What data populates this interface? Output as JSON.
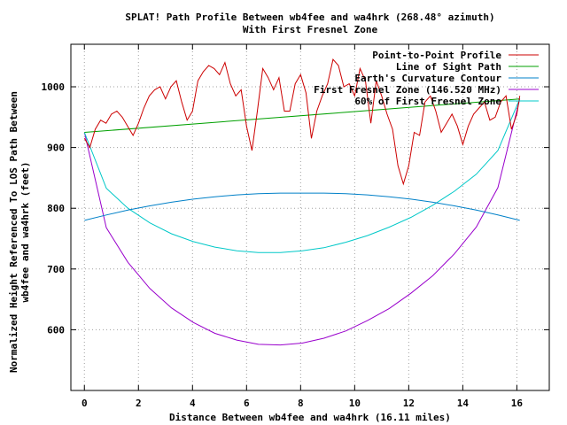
{
  "chart_data": {
    "type": "line",
    "title": "SPLAT! Path Profile Between wb4fee and wa4hrk (268.48° azimuth)",
    "subtitle": "With First Fresnel Zone",
    "xlabel": "Distance Between wb4fee and wa4hrk (16.11 miles)",
    "ylabel_lines": [
      "Normalized Height Referenced To LOS Path Between",
      "wb4fee and wa4hrk (feet)"
    ],
    "xlim": [
      -0.5,
      17.2
    ],
    "ylim": [
      500,
      1070
    ],
    "x_ticks": [
      0,
      2,
      4,
      6,
      8,
      10,
      12,
      14,
      16
    ],
    "x_tick_labels": [
      "0",
      "2",
      "4",
      "6",
      "8",
      "10",
      "12",
      "14",
      "16"
    ],
    "y_ticks": [
      600,
      700,
      800,
      900,
      1000
    ],
    "y_tick_labels": [
      "600",
      "700",
      "800",
      "900",
      "1000"
    ],
    "grid": true,
    "legend_position": "top-right",
    "series": [
      {
        "name": "Point-to-Point Profile",
        "color": "#cc0000",
        "x": [
          0,
          0.2,
          0.4,
          0.6,
          0.8,
          1.0,
          1.2,
          1.4,
          1.6,
          1.8,
          2.0,
          2.2,
          2.4,
          2.6,
          2.8,
          3.0,
          3.2,
          3.4,
          3.6,
          3.8,
          4.0,
          4.2,
          4.4,
          4.6,
          4.8,
          5.0,
          5.2,
          5.4,
          5.6,
          5.8,
          6.0,
          6.2,
          6.4,
          6.6,
          6.8,
          7.0,
          7.2,
          7.4,
          7.6,
          7.8,
          8.0,
          8.2,
          8.4,
          8.6,
          8.8,
          9.0,
          9.2,
          9.4,
          9.6,
          9.8,
          10.0,
          10.2,
          10.4,
          10.6,
          10.8,
          11.0,
          11.2,
          11.4,
          11.6,
          11.8,
          12.0,
          12.2,
          12.4,
          12.6,
          12.8,
          13.0,
          13.2,
          13.4,
          13.6,
          13.8,
          14.0,
          14.2,
          14.4,
          14.6,
          14.8,
          15.0,
          15.2,
          15.4,
          15.6,
          15.8,
          16.0,
          16.11
        ],
        "y": [
          915,
          900,
          930,
          945,
          940,
          955,
          960,
          950,
          935,
          920,
          940,
          965,
          985,
          995,
          1000,
          980,
          1000,
          1010,
          975,
          945,
          960,
          1010,
          1025,
          1035,
          1030,
          1020,
          1040,
          1005,
          985,
          995,
          935,
          895,
          960,
          1030,
          1015,
          995,
          1015,
          960,
          960,
          1005,
          1020,
          990,
          915,
          960,
          985,
          1005,
          1045,
          1035,
          1000,
          1005,
          985,
          1030,
          1010,
          940,
          1010,
          985,
          955,
          930,
          870,
          840,
          870,
          925,
          920,
          975,
          985,
          960,
          925,
          940,
          955,
          935,
          905,
          935,
          955,
          965,
          975,
          945,
          950,
          975,
          985,
          930,
          955,
          985
        ]
      },
      {
        "name": "Line of Sight Path",
        "color": "#00a000",
        "x": [
          0,
          16.11
        ],
        "y": [
          925,
          980
        ]
      },
      {
        "name": "Earth's Curvature Contour",
        "color": "#0080c8",
        "x": [
          0,
          0.81,
          1.61,
          2.42,
          3.22,
          4.03,
          4.83,
          5.64,
          6.44,
          7.25,
          8.06,
          8.86,
          9.67,
          10.47,
          11.28,
          12.08,
          12.89,
          13.69,
          14.5,
          15.3,
          16.11
        ],
        "y": [
          780,
          789,
          797,
          804,
          810,
          815,
          819,
          822,
          824,
          825,
          825,
          825,
          824,
          822,
          819,
          815,
          810,
          804,
          797,
          789,
          780
        ]
      },
      {
        "name": "First Fresnel Zone (146.520 MHz)",
        "color": "#9900cc",
        "x": [
          0,
          0.81,
          1.61,
          2.42,
          3.22,
          4.03,
          4.83,
          5.64,
          6.44,
          7.25,
          8.06,
          8.86,
          9.67,
          10.47,
          11.28,
          12.08,
          12.89,
          13.69,
          14.5,
          15.3,
          16.11
        ],
        "y": [
          925,
          768,
          711,
          668,
          636,
          612,
          594,
          583,
          576,
          575,
          578,
          586,
          598,
          615,
          635,
          660,
          689,
          725,
          769,
          834,
          980
        ]
      },
      {
        "name": "60% of First Fresnel Zone",
        "color": "#00c8c8",
        "x": [
          0,
          0.81,
          1.61,
          2.42,
          3.22,
          4.03,
          4.83,
          5.64,
          6.44,
          7.25,
          8.06,
          8.86,
          9.67,
          10.47,
          11.28,
          12.08,
          12.89,
          13.69,
          14.5,
          15.3,
          16.11
        ],
        "y": [
          925,
          833,
          800,
          776,
          758,
          745,
          736,
          730,
          727,
          727,
          730,
          735,
          744,
          755,
          769,
          785,
          805,
          828,
          856,
          895,
          980
        ]
      }
    ]
  }
}
